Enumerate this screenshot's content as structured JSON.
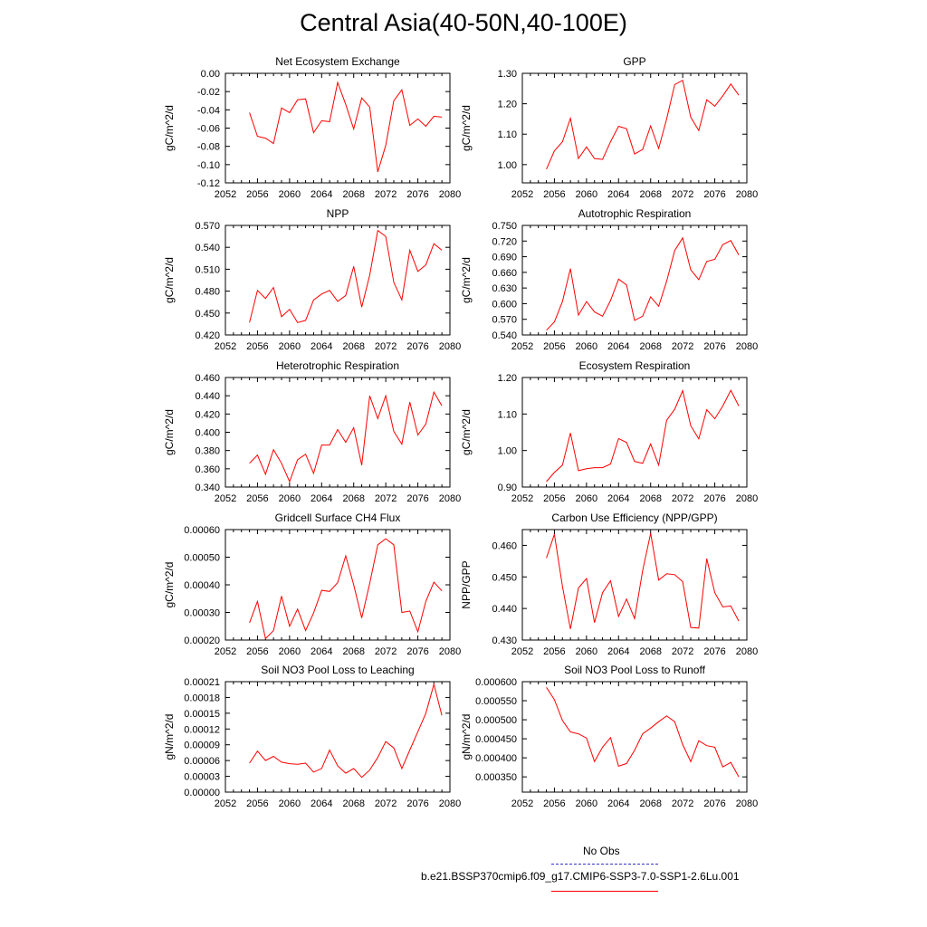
{
  "title": "Central Asia(40-50N,40-100E)",
  "colors": {
    "model": "#ff0000",
    "obs": "#3333cc",
    "axis": "#000000"
  },
  "legend": {
    "obs_label": "No Obs",
    "model_label": "b.e21.BSSP370cmip6.f09_g17.CMIP6-SSP3-7.0-SSP1-2.6Lu.001"
  },
  "chart_data": [
    {
      "type": "line",
      "title": "Net Ecosystem Exchange",
      "ylabel": "gC/m^2/d",
      "xlim": [
        2052,
        2080
      ],
      "xticks": [
        "2052",
        "2056",
        "2060",
        "2064",
        "2068",
        "2072",
        "2076",
        "2080"
      ],
      "ylim": [
        -0.12,
        0.0
      ],
      "yticks": [
        "-0.12",
        "-0.10",
        "-0.08",
        "-0.06",
        "-0.04",
        "-0.02",
        "0.00"
      ],
      "x": [
        2055,
        2056,
        2057,
        2058,
        2059,
        2060,
        2061,
        2062,
        2063,
        2064,
        2065,
        2066,
        2067,
        2068,
        2069,
        2070,
        2071,
        2072,
        2073,
        2074,
        2075,
        2076,
        2077,
        2078,
        2079
      ],
      "y": [
        -0.043,
        -0.069,
        -0.071,
        -0.077,
        -0.038,
        -0.043,
        -0.029,
        -0.028,
        -0.065,
        -0.052,
        -0.053,
        -0.01,
        -0.034,
        -0.061,
        -0.027,
        -0.037,
        -0.108,
        -0.079,
        -0.03,
        -0.018,
        -0.057,
        -0.05,
        -0.058,
        -0.047,
        -0.048
      ]
    },
    {
      "type": "line",
      "title": "GPP",
      "ylabel": "gC/m^2/d",
      "xlim": [
        2052,
        2080
      ],
      "xticks": [
        "2052",
        "2056",
        "2060",
        "2064",
        "2068",
        "2072",
        "2076",
        "2080"
      ],
      "ylim": [
        0.94,
        1.3
      ],
      "yticks": [
        "1.00",
        "1.10",
        "1.20",
        "1.30"
      ],
      "ytick_values": [
        1.0,
        1.1,
        1.2,
        1.3
      ],
      "x": [
        2055,
        2056,
        2057,
        2058,
        2059,
        2060,
        2061,
        2062,
        2063,
        2064,
        2065,
        2066,
        2067,
        2068,
        2069,
        2070,
        2071,
        2072,
        2073,
        2074,
        2075,
        2076,
        2077,
        2078,
        2079
      ],
      "y": [
        0.985,
        1.045,
        1.075,
        1.152,
        1.02,
        1.058,
        1.02,
        1.017,
        1.075,
        1.126,
        1.118,
        1.035,
        1.05,
        1.127,
        1.053,
        1.15,
        1.263,
        1.277,
        1.156,
        1.112,
        1.213,
        1.192,
        1.226,
        1.265,
        1.228
      ]
    },
    {
      "type": "line",
      "title": "NPP",
      "ylabel": "gC/m^2/d",
      "xlim": [
        2052,
        2080
      ],
      "xticks": [
        "2052",
        "2056",
        "2060",
        "2064",
        "2068",
        "2072",
        "2076",
        "2080"
      ],
      "ylim": [
        0.42,
        0.57
      ],
      "yticks": [
        "0.420",
        "0.450",
        "0.480",
        "0.510",
        "0.540",
        "0.570"
      ],
      "x": [
        2055,
        2056,
        2057,
        2058,
        2059,
        2060,
        2061,
        2062,
        2063,
        2064,
        2065,
        2066,
        2067,
        2068,
        2069,
        2070,
        2071,
        2072,
        2073,
        2074,
        2075,
        2076,
        2077,
        2078,
        2079
      ],
      "y": [
        0.437,
        0.481,
        0.47,
        0.485,
        0.445,
        0.455,
        0.437,
        0.44,
        0.468,
        0.476,
        0.481,
        0.466,
        0.474,
        0.514,
        0.458,
        0.502,
        0.563,
        0.555,
        0.492,
        0.468,
        0.536,
        0.507,
        0.516,
        0.545,
        0.536
      ]
    },
    {
      "type": "line",
      "title": "Autotrophic Respiration",
      "ylabel": "gC/m^2/d",
      "xlim": [
        2052,
        2080
      ],
      "xticks": [
        "2052",
        "2056",
        "2060",
        "2064",
        "2068",
        "2072",
        "2076",
        "2080"
      ],
      "ylim": [
        0.54,
        0.75
      ],
      "yticks": [
        "0.540",
        "0.570",
        "0.600",
        "0.630",
        "0.660",
        "0.690",
        "0.720",
        "0.750"
      ],
      "x": [
        2055,
        2056,
        2057,
        2058,
        2059,
        2060,
        2061,
        2062,
        2063,
        2064,
        2065,
        2066,
        2067,
        2068,
        2069,
        2070,
        2071,
        2072,
        2073,
        2074,
        2075,
        2076,
        2077,
        2078,
        2079
      ],
      "y": [
        0.549,
        0.565,
        0.604,
        0.667,
        0.578,
        0.604,
        0.584,
        0.576,
        0.606,
        0.647,
        0.636,
        0.568,
        0.576,
        0.613,
        0.595,
        0.643,
        0.702,
        0.726,
        0.665,
        0.646,
        0.681,
        0.685,
        0.713,
        0.721,
        0.693
      ]
    },
    {
      "type": "line",
      "title": "Heterotrophic Respiration",
      "ylabel": "gC/m^2/d",
      "xlim": [
        2052,
        2080
      ],
      "xticks": [
        "2052",
        "2056",
        "2060",
        "2064",
        "2068",
        "2072",
        "2076",
        "2080"
      ],
      "ylim": [
        0.34,
        0.46
      ],
      "yticks": [
        "0.340",
        "0.360",
        "0.380",
        "0.400",
        "0.420",
        "0.440",
        "0.460"
      ],
      "x": [
        2055,
        2056,
        2057,
        2058,
        2059,
        2060,
        2061,
        2062,
        2063,
        2064,
        2065,
        2066,
        2067,
        2068,
        2069,
        2070,
        2071,
        2072,
        2073,
        2074,
        2075,
        2076,
        2077,
        2078,
        2079
      ],
      "y": [
        0.366,
        0.375,
        0.354,
        0.381,
        0.366,
        0.346,
        0.37,
        0.376,
        0.355,
        0.386,
        0.386,
        0.403,
        0.389,
        0.405,
        0.364,
        0.44,
        0.415,
        0.44,
        0.401,
        0.387,
        0.433,
        0.397,
        0.409,
        0.444,
        0.429
      ]
    },
    {
      "type": "line",
      "title": "Ecosystem Respiration",
      "ylabel": "gC/m^2/d",
      "xlim": [
        2052,
        2080
      ],
      "xticks": [
        "2052",
        "2056",
        "2060",
        "2064",
        "2068",
        "2072",
        "2076",
        "2080"
      ],
      "ylim": [
        0.9,
        1.2
      ],
      "yticks": [
        "0.90",
        "1.00",
        "1.10",
        "1.20"
      ],
      "ytick_values": [
        0.9,
        1.0,
        1.1,
        1.2
      ],
      "x": [
        2055,
        2056,
        2057,
        2058,
        2059,
        2060,
        2061,
        2062,
        2063,
        2064,
        2065,
        2066,
        2067,
        2068,
        2069,
        2070,
        2071,
        2072,
        2073,
        2074,
        2075,
        2076,
        2077,
        2078,
        2079
      ],
      "y": [
        0.915,
        0.94,
        0.96,
        1.048,
        0.945,
        0.95,
        0.953,
        0.953,
        0.963,
        1.033,
        1.022,
        0.97,
        0.965,
        1.018,
        0.96,
        1.083,
        1.113,
        1.164,
        1.068,
        1.032,
        1.112,
        1.087,
        1.122,
        1.165,
        1.122
      ]
    },
    {
      "type": "line",
      "title": "Gridcell Surface CH4 Flux",
      "ylabel": "gC/m^2/d",
      "xlim": [
        2052,
        2080
      ],
      "xticks": [
        "2052",
        "2056",
        "2060",
        "2064",
        "2068",
        "2072",
        "2076",
        "2080"
      ],
      "ylim": [
        0.0002,
        0.0006
      ],
      "yticks": [
        "0.00020",
        "0.00030",
        "0.00040",
        "0.00050",
        "0.00060"
      ],
      "ytick_values": [
        0.0002,
        0.0003,
        0.0004,
        0.0005,
        0.0006
      ],
      "x": [
        2055,
        2056,
        2057,
        2058,
        2059,
        2060,
        2061,
        2062,
        2063,
        2064,
        2065,
        2066,
        2067,
        2068,
        2069,
        2070,
        2071,
        2072,
        2073,
        2074,
        2075,
        2076,
        2077,
        2078,
        2079
      ],
      "y": [
        0.000262,
        0.00034,
        0.000205,
        0.000234,
        0.000359,
        0.00025,
        0.000312,
        0.000234,
        0.000298,
        0.00038,
        0.000376,
        0.000408,
        0.000505,
        0.0004,
        0.00028,
        0.000405,
        0.000545,
        0.000567,
        0.000545,
        0.0003,
        0.000305,
        0.00023,
        0.00034,
        0.00041,
        0.000378
      ]
    },
    {
      "type": "line",
      "title": "Carbon Use Efficiency (NPP/GPP)",
      "ylabel": "NPP/GPP",
      "xlim": [
        2052,
        2080
      ],
      "xticks": [
        "2052",
        "2056",
        "2060",
        "2064",
        "2068",
        "2072",
        "2076",
        "2080"
      ],
      "ylim": [
        0.43,
        0.465
      ],
      "yticks": [
        "0.430",
        "0.440",
        "0.450",
        "0.460"
      ],
      "ytick_values": [
        0.43,
        0.44,
        0.45,
        0.46
      ],
      "x": [
        2055,
        2056,
        2057,
        2058,
        2059,
        2060,
        2061,
        2062,
        2063,
        2064,
        2065,
        2066,
        2067,
        2068,
        2069,
        2070,
        2071,
        2072,
        2073,
        2074,
        2075,
        2076,
        2077,
        2078,
        2079
      ],
      "y": [
        0.456,
        0.4635,
        0.447,
        0.4335,
        0.4465,
        0.4495,
        0.4355,
        0.445,
        0.4488,
        0.4375,
        0.443,
        0.4368,
        0.452,
        0.4638,
        0.449,
        0.451,
        0.4507,
        0.4485,
        0.434,
        0.4338,
        0.4558,
        0.445,
        0.4405,
        0.4408,
        0.436
      ]
    },
    {
      "type": "line",
      "title": "Soil NO3 Pool Loss to Leaching",
      "ylabel": "gN/m^2/d",
      "xlim": [
        2052,
        2080
      ],
      "xticks": [
        "2052",
        "2056",
        "2060",
        "2064",
        "2068",
        "2072",
        "2076",
        "2080"
      ],
      "ylim": [
        0.0,
        0.00021
      ],
      "yticks": [
        "0.00000",
        "0.00003",
        "0.00006",
        "0.00009",
        "0.00012",
        "0.00015",
        "0.00018",
        "0.00021"
      ],
      "ytick_values": [
        0.0,
        3e-05,
        6e-05,
        9e-05,
        0.00012,
        0.00015,
        0.00018,
        0.00021
      ],
      "x": [
        2055,
        2056,
        2057,
        2058,
        2059,
        2060,
        2061,
        2062,
        2063,
        2064,
        2065,
        2066,
        2067,
        2068,
        2069,
        2070,
        2071,
        2072,
        2073,
        2074,
        2075,
        2076,
        2077,
        2078,
        2079
      ],
      "y": [
        5.5e-05,
        7.8e-05,
        6e-05,
        6.8e-05,
        5.7e-05,
        5.4e-05,
        5.3e-05,
        5.5e-05,
        3.8e-05,
        4.5e-05,
        8e-05,
        5e-05,
        3.6e-05,
        4.5e-05,
        2.8e-05,
        4.2e-05,
        6.6e-05,
        9.6e-05,
        8.4e-05,
        4.5e-05,
        8e-05,
        0.000115,
        0.00015,
        0.000205,
        0.000146
      ]
    },
    {
      "type": "line",
      "title": "Soil NO3 Pool Loss to Runoff",
      "ylabel": "gN/m^2/d",
      "xlim": [
        2052,
        2080
      ],
      "xticks": [
        "2052",
        "2056",
        "2060",
        "2064",
        "2068",
        "2072",
        "2076",
        "2080"
      ],
      "ylim": [
        0.00031,
        0.0006
      ],
      "yticks": [
        "0.000350",
        "0.000400",
        "0.000450",
        "0.000500",
        "0.000550",
        "0.000600"
      ],
      "ytick_values": [
        0.00035,
        0.0004,
        0.00045,
        0.0005,
        0.00055,
        0.0006
      ],
      "x": [
        2055,
        2056,
        2057,
        2058,
        2059,
        2060,
        2061,
        2062,
        2063,
        2064,
        2065,
        2066,
        2067,
        2068,
        2069,
        2070,
        2071,
        2072,
        2073,
        2074,
        2075,
        2076,
        2077,
        2078,
        2079
      ],
      "y": [
        0.000585,
        0.000553,
        0.000498,
        0.000468,
        0.000463,
        0.000452,
        0.00039,
        0.000428,
        0.000453,
        0.000378,
        0.000385,
        0.00042,
        0.000463,
        0.000478,
        0.000495,
        0.00051,
        0.000495,
        0.000435,
        0.00039,
        0.000445,
        0.000432,
        0.000428,
        0.000376,
        0.000388,
        0.00035
      ]
    }
  ]
}
